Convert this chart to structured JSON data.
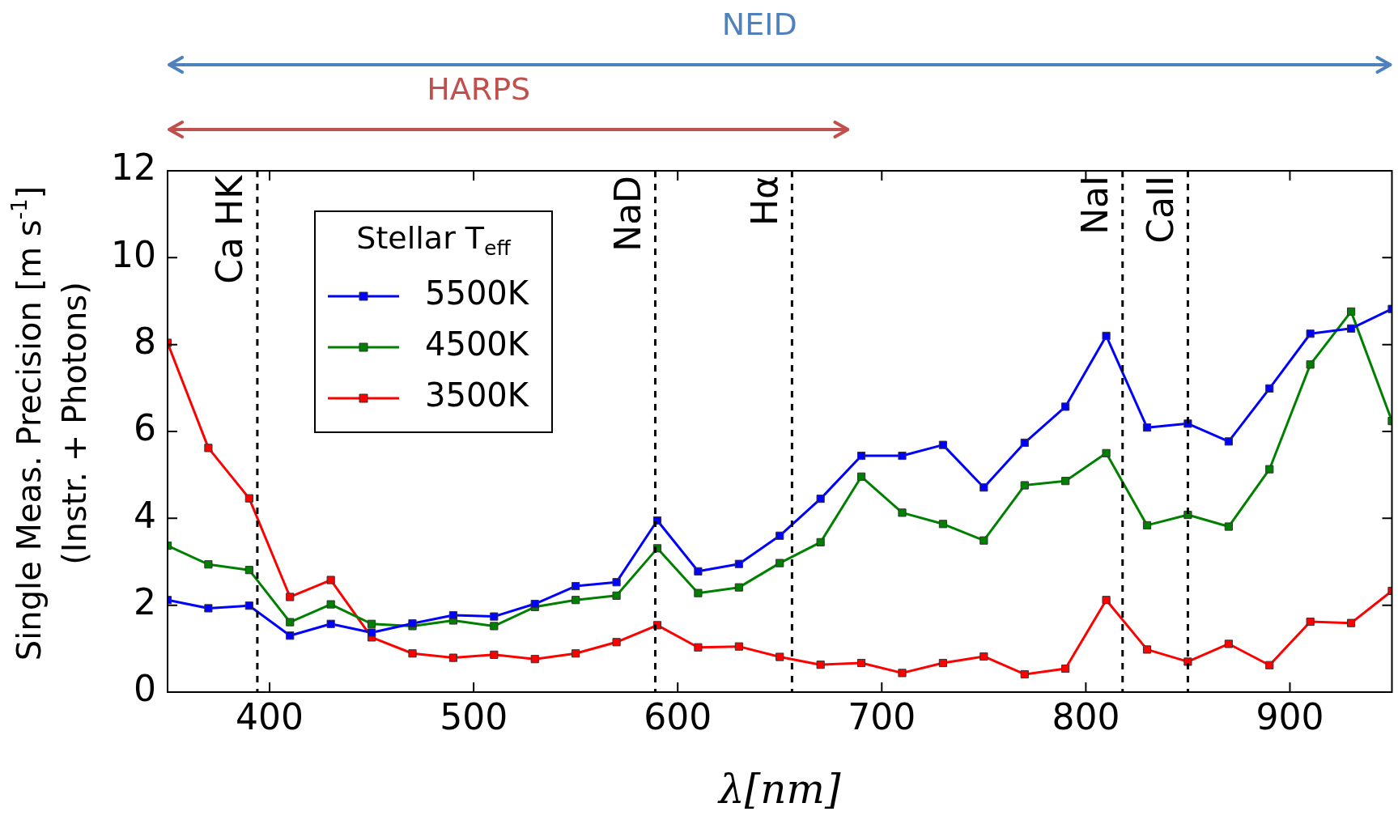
{
  "chart_data": {
    "type": "line",
    "xlabel": "λ[nm]",
    "ylabel": "Single Meas. Precision [m s$^{-1}$]\n(Instr. + Photons)",
    "legend_title": "Stellar T$_{eff}$",
    "legend": "top left",
    "marker": "square",
    "x": [
      350,
      370,
      390,
      410,
      430,
      450,
      470,
      490,
      510,
      530,
      550,
      570,
      590,
      610,
      630,
      650,
      670,
      690,
      710,
      730,
      750,
      770,
      790,
      810,
      830,
      850,
      870,
      890,
      910,
      930,
      950
    ],
    "xlim": [
      350,
      950
    ],
    "xticks": [
      400,
      500,
      600,
      700,
      800,
      900
    ],
    "ylim": [
      0,
      12
    ],
    "yticks": [
      0,
      2,
      4,
      6,
      8,
      10,
      12
    ],
    "series": [
      {
        "name": "5500K",
        "color": "#0000ff",
        "values": [
          2.12,
          1.93,
          1.99,
          1.3,
          1.57,
          1.37,
          1.58,
          1.77,
          1.74,
          2.03,
          2.44,
          2.53,
          3.95,
          2.78,
          2.95,
          3.6,
          4.45,
          5.44,
          5.44,
          5.69,
          4.71,
          5.74,
          6.57,
          8.2,
          6.09,
          6.18,
          5.77,
          6.99,
          8.25,
          8.37,
          8.82
        ]
      },
      {
        "name": "4500K",
        "color": "#008000",
        "values": [
          3.37,
          2.94,
          2.81,
          1.61,
          2.02,
          1.57,
          1.52,
          1.65,
          1.52,
          1.96,
          2.12,
          2.22,
          3.31,
          2.28,
          2.41,
          2.97,
          3.45,
          4.96,
          4.13,
          3.87,
          3.49,
          4.76,
          4.86,
          5.5,
          3.84,
          4.08,
          3.81,
          5.13,
          7.54,
          8.76,
          6.24
        ]
      },
      {
        "name": "3500K",
        "color": "#ff0000",
        "values": [
          8.04,
          5.62,
          4.46,
          2.19,
          2.58,
          1.26,
          0.89,
          0.79,
          0.86,
          0.76,
          0.89,
          1.15,
          1.54,
          1.03,
          1.05,
          0.81,
          0.63,
          0.67,
          0.44,
          0.67,
          0.82,
          0.41,
          0.54,
          2.12,
          0.98,
          0.7,
          1.11,
          0.62,
          1.62,
          1.59,
          2.33
        ]
      }
    ],
    "ref_lines": [
      {
        "axis": "x",
        "value": 394,
        "label": "Ca HK",
        "color": "#000000",
        "line_style": "dashed"
      },
      {
        "axis": "x",
        "value": 589,
        "label": "NaD",
        "color": "#000000",
        "line_style": "dashed"
      },
      {
        "axis": "x",
        "value": 656,
        "label": "Hα",
        "color": "#000000",
        "line_style": "dashed"
      },
      {
        "axis": "x",
        "value": 818,
        "label": "NaI",
        "color": "#000000",
        "line_style": "dashed"
      },
      {
        "axis": "x",
        "value": 850,
        "label": "CaII",
        "color": "#000000",
        "line_style": "dashed"
      }
    ],
    "annotations": [
      "NEID",
      "HARPS"
    ]
  }
}
